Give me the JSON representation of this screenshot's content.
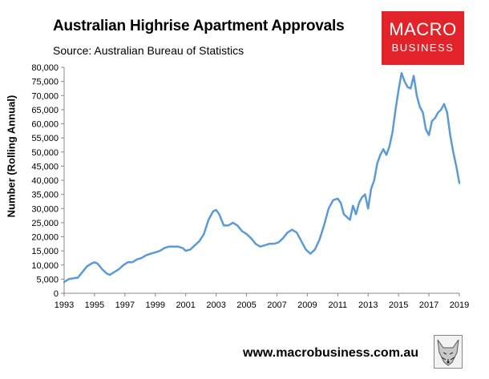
{
  "header": {
    "title": "Australian Highrise Apartment Approvals",
    "source": "Source: Australian Bureau of Statistics"
  },
  "logo": {
    "line1": "MACRO",
    "line2": "BUSINESS",
    "color": "#e2232a"
  },
  "footer": {
    "url": "www.macrobusiness.com.au",
    "emblem": "fox-emblem-icon"
  },
  "chart_data": {
    "type": "line",
    "title": "Australian Highrise Apartment Approvals",
    "ylabel": "Number (Rolling Annual)",
    "xlabel": "",
    "xlim": [
      1993,
      2019
    ],
    "ylim": [
      0,
      80000
    ],
    "x_ticks": [
      1993,
      1995,
      1997,
      1999,
      2001,
      2003,
      2005,
      2007,
      2009,
      2011,
      2013,
      2015,
      2017,
      2019
    ],
    "y_ticks": [
      0,
      5000,
      10000,
      15000,
      20000,
      25000,
      30000,
      35000,
      40000,
      45000,
      50000,
      55000,
      60000,
      65000,
      70000,
      75000,
      80000
    ],
    "y_tick_labels": [
      "0",
      "5,000",
      "10,000",
      "15,000",
      "20,000",
      "25,000",
      "30,000",
      "35,000",
      "40,000",
      "45,000",
      "50,000",
      "55,000",
      "60,000",
      "65,000",
      "70,000",
      "75,000",
      "80,000"
    ],
    "grid": false,
    "line_color": "#5b9bd5",
    "series": [
      {
        "x": [
          1993.0,
          1993.3,
          1993.6,
          1993.9,
          1994.2,
          1994.5,
          1994.8,
          1995.0,
          1995.2,
          1995.5,
          1995.8,
          1996.0,
          1996.3,
          1996.6,
          1996.9,
          1997.2,
          1997.5,
          1997.8,
          1998.1,
          1998.4,
          1998.7,
          1999.0,
          1999.3,
          1999.6,
          1999.9,
          2000.2,
          2000.5,
          2000.8,
          2001.0,
          2001.3,
          2001.6,
          2001.9,
          2002.2,
          2002.5,
          2002.8,
          2003.0,
          2003.2,
          2003.5,
          2003.8,
          2004.1,
          2004.4,
          2004.7,
          2005.0,
          2005.3,
          2005.6,
          2005.9,
          2006.2,
          2006.5,
          2006.8,
          2007.1,
          2007.4,
          2007.7,
          2008.0,
          2008.3,
          2008.6,
          2008.9,
          2009.2,
          2009.5,
          2009.8,
          2010.1,
          2010.4,
          2010.7,
          2011.0,
          2011.2,
          2011.4,
          2011.6,
          2011.8,
          2012.0,
          2012.2,
          2012.4,
          2012.6,
          2012.8,
          2013.0,
          2013.2,
          2013.4,
          2013.6,
          2013.8,
          2014.0,
          2014.2,
          2014.4,
          2014.6,
          2014.8,
          2015.0,
          2015.2,
          2015.4,
          2015.6,
          2015.8,
          2016.0,
          2016.2,
          2016.4,
          2016.6,
          2016.8,
          2017.0,
          2017.2,
          2017.4,
          2017.6,
          2017.8,
          2018.0,
          2018.2,
          2018.4,
          2018.6,
          2018.8,
          2019.0
        ],
        "values": [
          4000,
          5000,
          5300,
          5500,
          7500,
          9500,
          10500,
          11000,
          10500,
          8500,
          7000,
          6500,
          7500,
          8500,
          10000,
          11000,
          11000,
          12000,
          12500,
          13500,
          14000,
          14500,
          15000,
          16000,
          16500,
          16500,
          16500,
          16000,
          15000,
          15500,
          17000,
          18500,
          21000,
          26000,
          29000,
          29500,
          28000,
          24000,
          24000,
          25000,
          24000,
          22000,
          21000,
          19500,
          17500,
          16500,
          17000,
          17500,
          17500,
          18000,
          19500,
          21500,
          22500,
          21500,
          18500,
          15500,
          14000,
          15500,
          19000,
          24000,
          30000,
          33000,
          33500,
          32000,
          28000,
          27000,
          26000,
          31000,
          28000,
          32000,
          34000,
          35000,
          30000,
          37000,
          40000,
          46000,
          49000,
          51000,
          49000,
          52000,
          57000,
          65000,
          72000,
          78000,
          75000,
          73000,
          72500,
          77000,
          70000,
          66000,
          64000,
          58000,
          56000,
          61000,
          62000,
          64000,
          65000,
          67000,
          64000,
          56000,
          50000,
          45000,
          39000
        ]
      }
    ]
  }
}
